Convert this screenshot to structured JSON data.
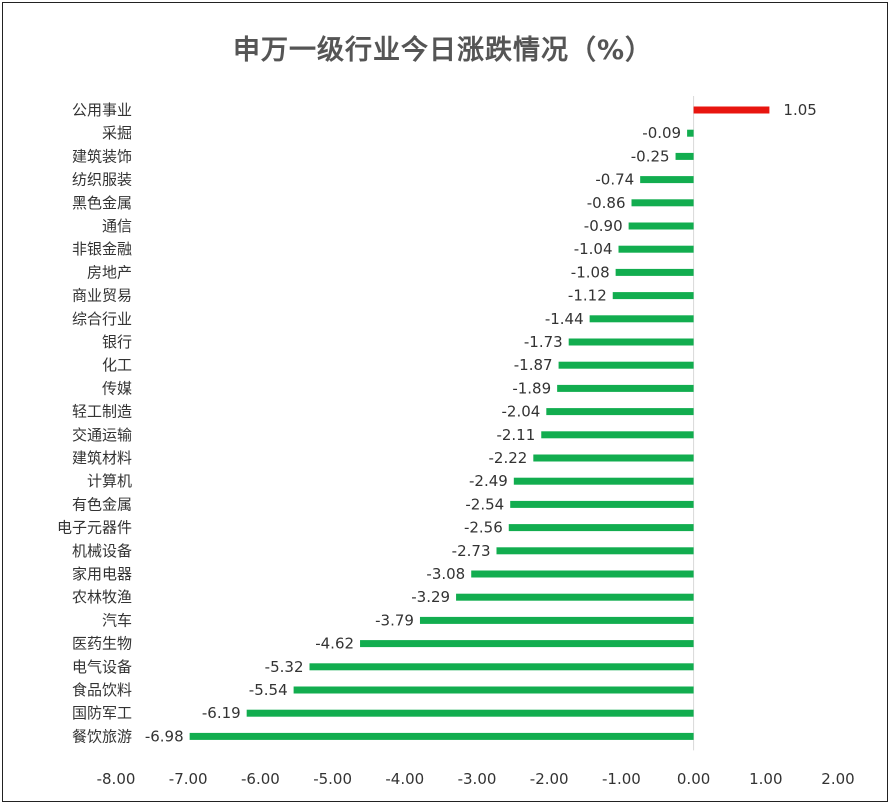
{
  "chart_data": {
    "type": "bar",
    "orientation": "horizontal",
    "title": "申万一级行业今日涨跌情况（%）",
    "categories": [
      "公用事业",
      "采掘",
      "建筑装饰",
      "纺织服装",
      "黑色金属",
      "通信",
      "非银金融",
      "房地产",
      "商业贸易",
      "综合行业",
      "银行",
      "化工",
      "传媒",
      "轻工制造",
      "交通运输",
      "建筑材料",
      "计算机",
      "有色金属",
      "电子元器件",
      "机械设备",
      "家用电器",
      "农林牧渔",
      "汽车",
      "医药生物",
      "电气设备",
      "食品饮料",
      "国防军工",
      "餐饮旅游"
    ],
    "values": [
      1.05,
      -0.09,
      -0.25,
      -0.74,
      -0.86,
      -0.9,
      -1.04,
      -1.08,
      -1.12,
      -1.44,
      -1.73,
      -1.87,
      -1.89,
      -2.04,
      -2.11,
      -2.22,
      -2.49,
      -2.54,
      -2.56,
      -2.73,
      -3.08,
      -3.29,
      -3.79,
      -4.62,
      -5.32,
      -5.54,
      -6.19,
      -6.98
    ],
    "value_labels": [
      "1.05",
      "-0.09",
      "-0.25",
      "-0.74",
      "-0.86",
      "-0.90",
      "-1.04",
      "-1.08",
      "-1.12",
      "-1.44",
      "-1.73",
      "-1.87",
      "-1.89",
      "-2.04",
      "-2.11",
      "-2.22",
      "-2.49",
      "-2.54",
      "-2.56",
      "-2.73",
      "-3.08",
      "-3.29",
      "-3.79",
      "-4.62",
      "-5.32",
      "-5.54",
      "-6.19",
      "-6.98"
    ],
    "xlim": [
      -8.0,
      2.0
    ],
    "xticks": [
      "-8.00",
      "-7.00",
      "-6.00",
      "-5.00",
      "-4.00",
      "-3.00",
      "-2.00",
      "-1.00",
      "0.00",
      "1.00",
      "2.00"
    ],
    "positive_color": "#e8150f",
    "negative_color": "#12ad4f",
    "grid": false,
    "legend": "none"
  }
}
